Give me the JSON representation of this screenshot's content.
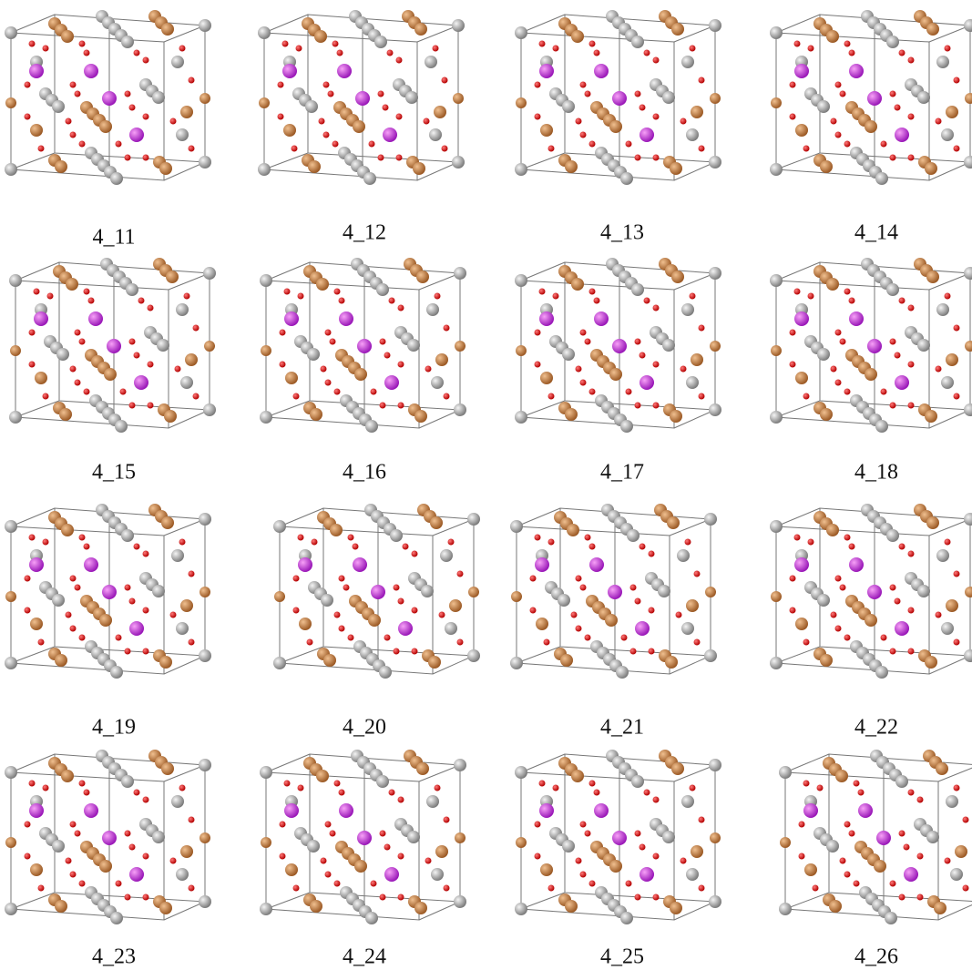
{
  "labels": [
    "4_11",
    "4_12",
    "4_13",
    "4_14",
    "4_15",
    "4_16",
    "4_17",
    "4_18",
    "4_19",
    "4_20",
    "4_21",
    "4_22",
    "4_23",
    "4_24",
    "4_25",
    "4_26"
  ]
}
